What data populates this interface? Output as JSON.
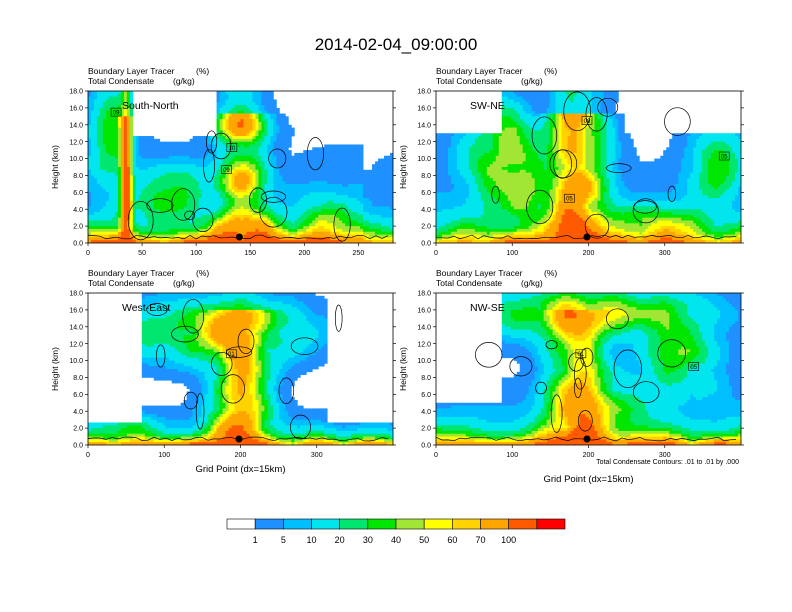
{
  "title": "2014-02-04_09:00:00",
  "colors": {
    "levels": [
      "#ffffff",
      "#1e90ff",
      "#00bfff",
      "#00e5ee",
      "#00e66e",
      "#00e600",
      "#a0e632",
      "#ffff00",
      "#ffd200",
      "#ffa500",
      "#ff5a00",
      "#ff0000"
    ],
    "contour": "#000000"
  },
  "colorbar": {
    "labels": [
      "1",
      "5",
      "10",
      "20",
      "30",
      "40",
      "50",
      "60",
      "70",
      "100"
    ]
  },
  "footnote": "Total Condensate Contours: .01 to .01 by .000",
  "chart_data": [
    {
      "type": "heatmap",
      "name": "South-North",
      "label": "South-North",
      "subtitle_left_1": "Boundary Layer Tracer",
      "subtitle_right_1": "(%)",
      "subtitle_left_2": "Total Condensate",
      "subtitle_right_2": "(g/kg)",
      "ylabel": "Height (km)",
      "xlabel": "",
      "xlim": [
        0,
        282
      ],
      "ylim": [
        0,
        18
      ],
      "xticks": [
        0,
        50,
        100,
        150,
        200,
        250
      ],
      "yticks": [
        "0.0",
        "2.0",
        "4.0",
        "6.0",
        "8.0",
        "10.0",
        "12.0",
        "14.0",
        "16.0",
        "18.0"
      ],
      "marker_x": 140,
      "boxes": [
        {
          "x": 26,
          "y": 15.5,
          "label": "09"
        },
        {
          "x": 133,
          "y": 11.3,
          "label": "10"
        },
        {
          "x": 128,
          "y": 8.7,
          "label": "09"
        }
      ]
    },
    {
      "type": "heatmap",
      "name": "SW-NE",
      "label": "SW-NE",
      "subtitle_left_1": "Boundary Layer Tracer",
      "subtitle_right_1": "(%)",
      "subtitle_left_2": "Total Condensate",
      "subtitle_right_2": "(g/kg)",
      "ylabel": "Height (km)",
      "xlabel": "",
      "xlim": [
        0,
        400
      ],
      "ylim": [
        0,
        18
      ],
      "xticks": [
        0,
        100,
        200,
        300
      ],
      "yticks": [
        "0.0",
        "2.0",
        "4.0",
        "6.0",
        "8.0",
        "10.0",
        "12.0",
        "14.0",
        "16.0",
        "18.0"
      ],
      "marker_x": 198,
      "boxes": [
        {
          "x": 198,
          "y": 14.5,
          "label": "09"
        },
        {
          "x": 175,
          "y": 5.3,
          "label": "05"
        },
        {
          "x": 378,
          "y": 10.3,
          "label": "05"
        }
      ]
    },
    {
      "type": "heatmap",
      "name": "West-East",
      "label": "West-East",
      "subtitle_left_1": "Boundary Layer Tracer",
      "subtitle_right_1": "(%)",
      "subtitle_left_2": "Total Condensate",
      "subtitle_right_2": "(g/kg)",
      "ylabel": "Height (km)",
      "xlabel": "Grid Point (dx=15km)",
      "xlim": [
        0,
        400
      ],
      "ylim": [
        0,
        18
      ],
      "xticks": [
        0,
        100,
        200,
        300
      ],
      "yticks": [
        "0.0",
        "2.0",
        "4.0",
        "6.0",
        "8.0",
        "10.0",
        "12.0",
        "14.0",
        "16.0",
        "18.0"
      ],
      "marker_x": 198,
      "boxes": [
        {
          "x": 188,
          "y": 10.8,
          "label": "01"
        }
      ]
    },
    {
      "type": "heatmap",
      "name": "NW-SE",
      "label": "NW-SE",
      "subtitle_left_1": "Boundary Layer Tracer",
      "subtitle_right_1": "(%)",
      "subtitle_left_2": "Total Condensate",
      "subtitle_right_2": "(g/kg)",
      "ylabel": "Height (km)",
      "xlabel": "Grid Point (dx=15km)",
      "xlim": [
        0,
        400
      ],
      "ylim": [
        0,
        18
      ],
      "xticks": [
        0,
        100,
        200,
        300
      ],
      "yticks": [
        "0.0",
        "2.0",
        "4.0",
        "6.0",
        "8.0",
        "10.0",
        "12.0",
        "14.0",
        "16.0",
        "18.0"
      ],
      "marker_x": 198,
      "boxes": [
        {
          "x": 190,
          "y": 10.8,
          "label": "01"
        },
        {
          "x": 338,
          "y": 9.3,
          "label": "05"
        }
      ]
    }
  ]
}
